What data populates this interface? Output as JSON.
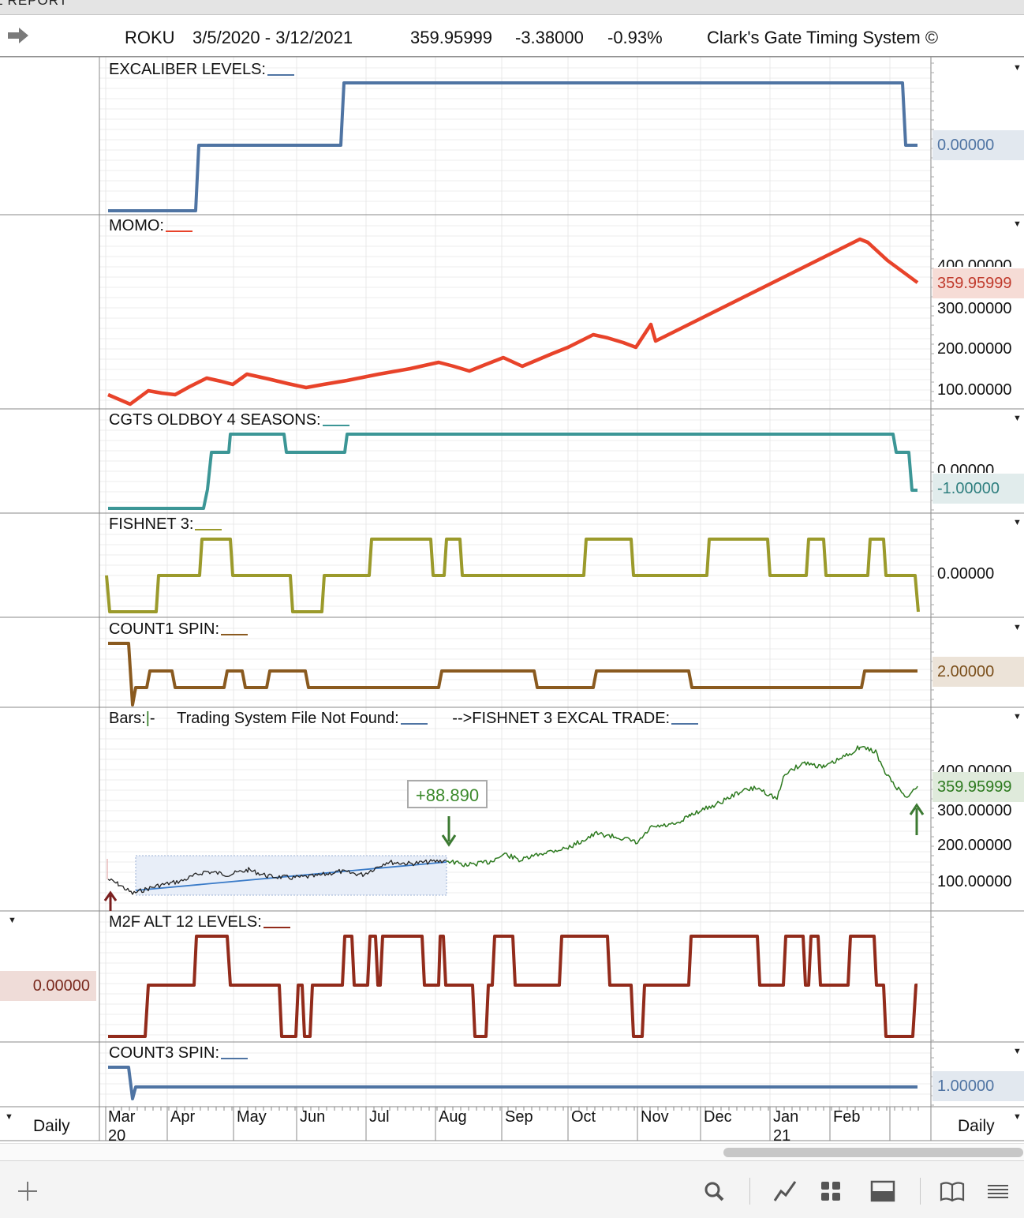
{
  "window_title": "L REPORT",
  "header": {
    "ticker": "ROKU",
    "date_range": "3/5/2020 - 3/12/2021",
    "last_price": "359.95999",
    "change": "-3.38000",
    "change_pct": "-0.93%",
    "system_name": "Clark's Gate Timing System ©"
  },
  "panels": {
    "excaliber": {
      "label": "EXCALIBER LEVELS:",
      "badge": "0.00000",
      "color": "#4f74a3"
    },
    "momo": {
      "label": "MOMO:",
      "badge": "359.95999",
      "ticks": [
        "400.00000",
        "300.00000",
        "200.00000",
        "100.00000"
      ],
      "color": "#e8432a"
    },
    "cgts": {
      "label": "CGTS OLDBOY 4 SEASONS:",
      "badge": "-1.00000",
      "tick": "0.00000",
      "color": "#3c9696"
    },
    "fishnet": {
      "label": "FISHNET 3:",
      "tick": "0.00000",
      "color": "#9b9a2b"
    },
    "count1": {
      "label": "COUNT1 SPIN:",
      "badge": "2.00000",
      "color": "#8a5a1f"
    },
    "bars": {
      "label_bars": "Bars:",
      "label_bars_suffix": "-",
      "label_system": "Trading System File Not Found:",
      "label_trade": "-->FISHNET 3 EXCAL TRADE:",
      "badge": "359.95999",
      "ticks": [
        "400.00000",
        "300.00000",
        "200.00000",
        "100.00000"
      ],
      "trade_profit": "+88.890",
      "color": "#2d7a1f"
    },
    "m2f": {
      "label": "M2F ALT 12 LEVELS:",
      "badge": "0.00000",
      "color": "#922b1b"
    },
    "count3": {
      "label": "COUNT3 SPIN:",
      "badge": "1.00000",
      "color": "#4f74a3"
    }
  },
  "x_axis": {
    "months": [
      "Mar",
      "Apr",
      "May",
      "Jun",
      "Jul",
      "Aug",
      "Sep",
      "Oct",
      "Nov",
      "Dec",
      "Jan",
      "Feb"
    ],
    "years": [
      "20",
      "21"
    ],
    "period_left": "Daily",
    "period_right": "Daily"
  },
  "chart_data": [
    {
      "type": "line",
      "title": "EXCALIBER LEVELS:",
      "x": [
        "Mar",
        "Apr",
        "Jun",
        "Mar"
      ],
      "series": [
        {
          "values": [
            -2,
            -1,
            1,
            0
          ]
        }
      ]
    },
    {
      "type": "line",
      "title": "MOMO:",
      "ylim": [
        50,
        470
      ],
      "x": [
        "Mar",
        "Mar",
        "Mar",
        "Apr",
        "Apr",
        "Apr",
        "May",
        "May",
        "Jun",
        "Jun",
        "Jul",
        "Jul",
        "Aug",
        "Aug",
        "Aug",
        "Sep",
        "Sep",
        "Oct",
        "Oct",
        "Nov",
        "Nov",
        "Nov",
        "Feb",
        "Mar"
      ],
      "series": [
        {
          "name": "ROKU",
          "values": [
            85,
            55,
            105,
            90,
            130,
            115,
            135,
            120,
            100,
            115,
            130,
            145,
            160,
            140,
            170,
            150,
            185,
            210,
            240,
            205,
            255,
            215,
            440,
            360
          ]
        }
      ]
    },
    {
      "type": "line",
      "title": "CGTS OLDBOY 4 SEASONS:",
      "series": [
        {
          "values": [
            -3,
            -2,
            1,
            2,
            1,
            2,
            1,
            -1
          ]
        }
      ]
    },
    {
      "type": "line",
      "title": "FISHNET 3:",
      "series": [
        {
          "values": [
            0,
            -1,
            0,
            1,
            0,
            -1,
            0,
            1,
            0,
            1,
            0,
            1,
            0,
            1,
            0,
            1,
            0,
            1,
            0,
            1,
            0,
            -1
          ]
        }
      ]
    },
    {
      "type": "line",
      "title": "COUNT1 SPIN:",
      "series": [
        {
          "values": [
            3,
            1,
            2,
            1,
            2,
            1,
            2,
            1,
            2,
            1,
            2,
            1,
            2,
            1,
            2
          ]
        }
      ]
    },
    {
      "type": "line",
      "title": "Bars",
      "ylim": [
        50,
        470
      ],
      "series": [
        {
          "name": "ROKU",
          "values": [
            100,
            70,
            95,
            130,
            120,
            140,
            115,
            150,
            140,
            160,
            150,
            170,
            175,
            165,
            200,
            230,
            240,
            205,
            255,
            290,
            330,
            345,
            420,
            450,
            470,
            360
          ]
        }
      ]
    },
    {
      "type": "line",
      "title": "M2F ALT 12 LEVELS:",
      "series": [
        {
          "values": [
            -1,
            0,
            1,
            0,
            -1,
            0,
            1,
            0,
            1,
            0,
            1,
            0,
            -1,
            0,
            1,
            0,
            -1,
            0,
            1,
            0,
            1,
            0,
            1,
            0,
            -1,
            0
          ]
        }
      ]
    },
    {
      "type": "line",
      "title": "COUNT3 SPIN:",
      "series": [
        {
          "values": [
            2,
            0,
            1
          ]
        }
      ]
    }
  ]
}
